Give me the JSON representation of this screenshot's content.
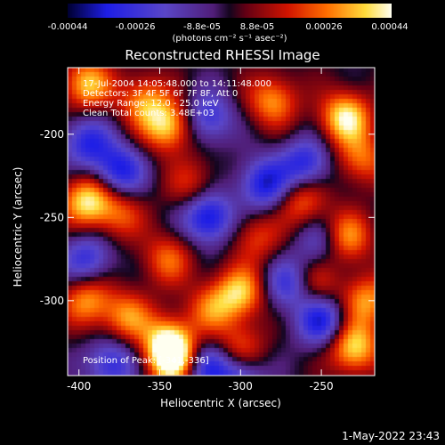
{
  "chart_data": {
    "type": "heatmap",
    "title": "Reconstructed RHESSI Image",
    "xlabel": "Heliocentric X (arcsec)",
    "ylabel": "Heliocentric Y (arcsec)",
    "xlim": [
      -407,
      -217
    ],
    "ylim": [
      -345,
      -160
    ],
    "x_ticks": [
      -400,
      -350,
      -300,
      -250
    ],
    "y_ticks": [
      -200,
      -250,
      -300
    ],
    "colorbar": {
      "range": [
        -0.00044,
        0.00044
      ],
      "tick_labels": [
        "-0.00044",
        "-0.00026",
        "-8.8e-05",
        "8.8e-05",
        "0.00026",
        "0.00044"
      ],
      "unit_label": "(photons cm⁻² s⁻¹ asec⁻²)"
    },
    "annotations": {
      "time_range": "17-Jul-2004 14:05:48.000 to 14:11:48.000",
      "detectors": "Detectors: 3F 4F 5F 6F 7F 8F, Att 0",
      "energy_range": "Energy Range: 12.0 - 25.0 keV",
      "clean_counts": "Clean    Total counts: 3.48E+03",
      "peak_position": "Position of Peak: [-341,-336]"
    },
    "peak": {
      "x": -341,
      "y": -336
    },
    "hot_spots": [
      {
        "x": -395,
        "y": -170,
        "value": 0.00035
      },
      {
        "x": -360,
        "y": -180,
        "value": 0.00028
      },
      {
        "x": -345,
        "y": -195,
        "value": 0.00038
      },
      {
        "x": -280,
        "y": -180,
        "value": 0.0003
      },
      {
        "x": -235,
        "y": -190,
        "value": 0.00042
      },
      {
        "x": -225,
        "y": -215,
        "value": 0.00025
      },
      {
        "x": -395,
        "y": -240,
        "value": 0.0004
      },
      {
        "x": -375,
        "y": -248,
        "value": 0.00022
      },
      {
        "x": -330,
        "y": -230,
        "value": 0.00018
      },
      {
        "x": -262,
        "y": -240,
        "value": 0.00026
      },
      {
        "x": -235,
        "y": -262,
        "value": 0.00033
      },
      {
        "x": -345,
        "y": -275,
        "value": 0.00024
      },
      {
        "x": -290,
        "y": -262,
        "value": 0.0002
      },
      {
        "x": -300,
        "y": -295,
        "value": 0.00035
      },
      {
        "x": -255,
        "y": -290,
        "value": 0.00022
      },
      {
        "x": -395,
        "y": -300,
        "value": 0.0003
      },
      {
        "x": -370,
        "y": -310,
        "value": 0.00028
      },
      {
        "x": -318,
        "y": -305,
        "value": 0.00024
      },
      {
        "x": -345,
        "y": -325,
        "value": 0.00036
      },
      {
        "x": -341,
        "y": -336,
        "value": 0.00044
      },
      {
        "x": -300,
        "y": -330,
        "value": 0.00026
      },
      {
        "x": -230,
        "y": -328,
        "value": 0.0004
      },
      {
        "x": -222,
        "y": -300,
        "value": 0.0003
      }
    ],
    "cold_spots": [
      {
        "x": -395,
        "y": -205,
        "value": -0.0003
      },
      {
        "x": -375,
        "y": -222,
        "value": -0.00035
      },
      {
        "x": -320,
        "y": -250,
        "value": -0.0004
      },
      {
        "x": -285,
        "y": -230,
        "value": -0.00036
      },
      {
        "x": -260,
        "y": -218,
        "value": -0.00032
      },
      {
        "x": -320,
        "y": -190,
        "value": -0.00028
      },
      {
        "x": -250,
        "y": -312,
        "value": -0.00036
      },
      {
        "x": -270,
        "y": -290,
        "value": -0.0003
      },
      {
        "x": -380,
        "y": -338,
        "value": -0.0003
      },
      {
        "x": -322,
        "y": -340,
        "value": -0.00032
      },
      {
        "x": -395,
        "y": -275,
        "value": -0.00028
      },
      {
        "x": -300,
        "y": -345,
        "value": -0.0003
      },
      {
        "x": -250,
        "y": -265,
        "value": -0.00022
      }
    ]
  },
  "timestamp": "1-May-2022 23:43"
}
